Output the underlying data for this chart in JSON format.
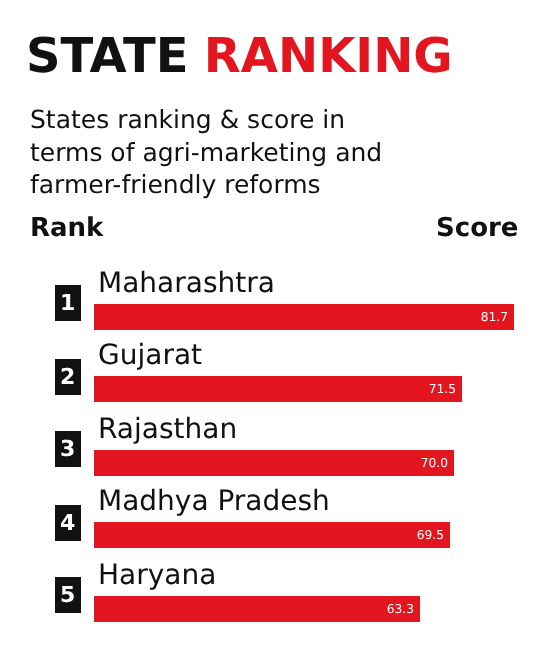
{
  "chart_data": {
    "type": "bar",
    "orientation": "horizontal",
    "title": "STATE RANKING",
    "subtitle": "States ranking & score in terms of agri-marketing and farmer-friendly reforms",
    "ylabel": "Rank",
    "xlabel": "Score",
    "categories": [
      "Maharashtra",
      "Gujarat",
      "Rajasthan",
      "Madhya Pradesh",
      "Haryana"
    ],
    "values": [
      81.7,
      71.5,
      70.0,
      69.5,
      63.3
    ],
    "value_labels": [
      "81.7",
      "71.5",
      "70.0",
      "69.5",
      "63.3"
    ],
    "color": "#e3161f",
    "annotations": [
      "1",
      "2",
      "3",
      "4",
      "5"
    ]
  }
}
